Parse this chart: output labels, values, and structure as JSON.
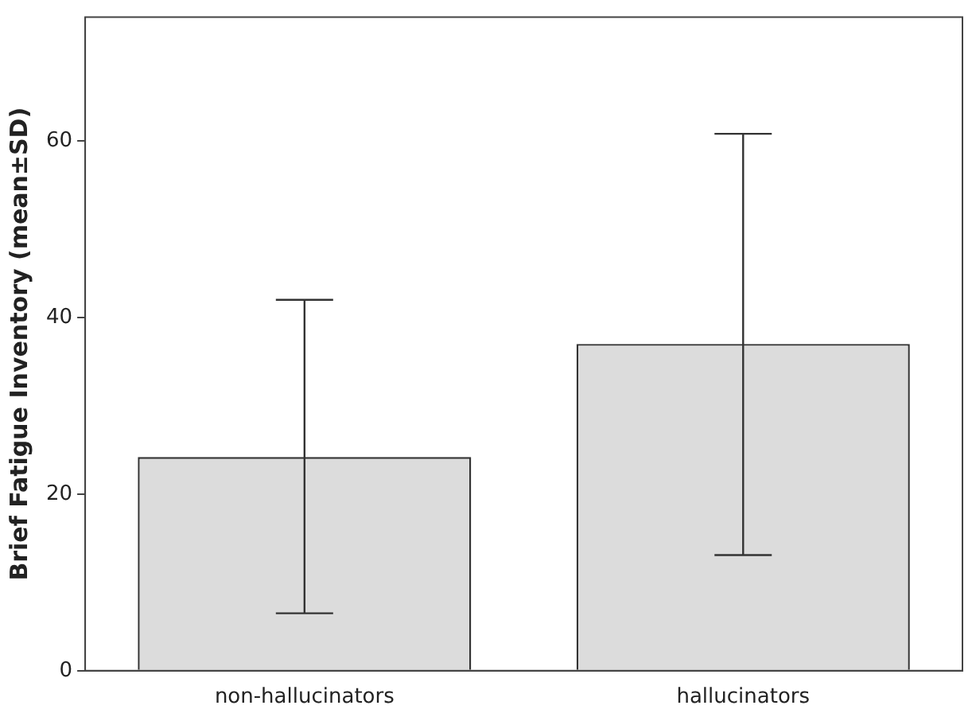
{
  "chart_data": {
    "type": "bar",
    "ylabel": "Brief Fatigue Inventory (mean±SD)",
    "categories": [
      "non-hallucinators",
      "hallucinators"
    ],
    "values": [
      24.2,
      37.0
    ],
    "errors": [
      [
        6.5,
        42.0
      ],
      [
        13.1,
        60.8
      ]
    ],
    "color": "#dcdcdc",
    "ylim": [
      0,
      74
    ],
    "yticks": [
      0,
      20,
      40,
      60
    ],
    "grid": false,
    "legend": false
  }
}
